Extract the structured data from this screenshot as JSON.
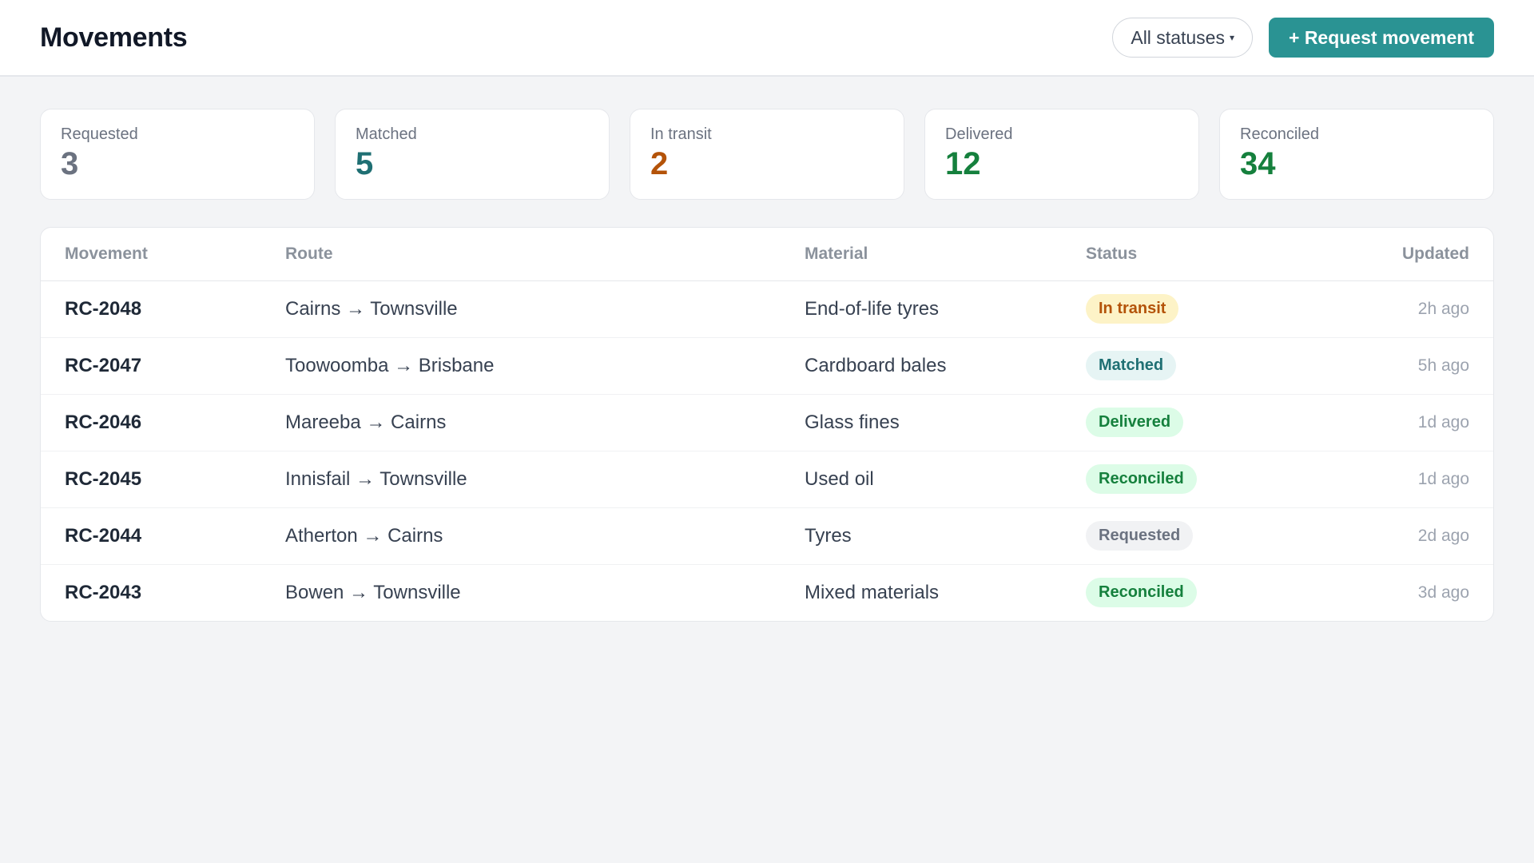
{
  "header": {
    "title": "Movements",
    "status_filter_label": "All statuses",
    "status_filter_caret": "▾",
    "request_button_label": "+ Request movement"
  },
  "summary_cards": [
    {
      "label": "Requested",
      "value": "3",
      "color": "#6b7280"
    },
    {
      "label": "Matched",
      "value": "5",
      "color": "#1f6f73"
    },
    {
      "label": "In transit",
      "value": "2",
      "color": "#b45309"
    },
    {
      "label": "Delivered",
      "value": "12",
      "color": "#15803d"
    },
    {
      "label": "Reconciled",
      "value": "34",
      "color": "#15803d"
    }
  ],
  "table": {
    "headers": {
      "movement": "Movement",
      "route": "Route",
      "material": "Material",
      "status": "Status",
      "updated": "Updated"
    },
    "rows": [
      {
        "id": "RC-2048",
        "route": "Cairns → Townsville",
        "material": "End-of-life tyres",
        "status": "In transit",
        "updated": "2h ago"
      },
      {
        "id": "RC-2047",
        "route": "Toowoomba → Brisbane",
        "material": "Cardboard bales",
        "status": "Matched",
        "updated": "5h ago"
      },
      {
        "id": "RC-2046",
        "route": "Mareeba → Cairns",
        "material": "Glass fines",
        "status": "Delivered",
        "updated": "1d ago"
      },
      {
        "id": "RC-2045",
        "route": "Innisfail → Townsville",
        "material": "Used oil",
        "status": "Reconciled",
        "updated": "1d ago"
      },
      {
        "id": "RC-2044",
        "route": "Atherton → Cairns",
        "material": "Tyres",
        "status": "Requested",
        "updated": "2d ago"
      },
      {
        "id": "RC-2043",
        "route": "Bowen → Townsville",
        "material": "Mixed materials",
        "status": "Reconciled",
        "updated": "3d ago"
      }
    ]
  },
  "status_colors": {
    "In transit": {
      "bg": "#fdf3c7",
      "fg": "#b45309"
    },
    "Matched": {
      "bg": "#e6f4f4",
      "fg": "#1f6f73"
    },
    "Delivered": {
      "bg": "#dcfce7",
      "fg": "#15803d"
    },
    "Reconciled": {
      "bg": "#dcfce7",
      "fg": "#15803d"
    },
    "Requested": {
      "bg": "#f1f2f4",
      "fg": "#6b7280"
    }
  },
  "accent_color": "#2a9393"
}
